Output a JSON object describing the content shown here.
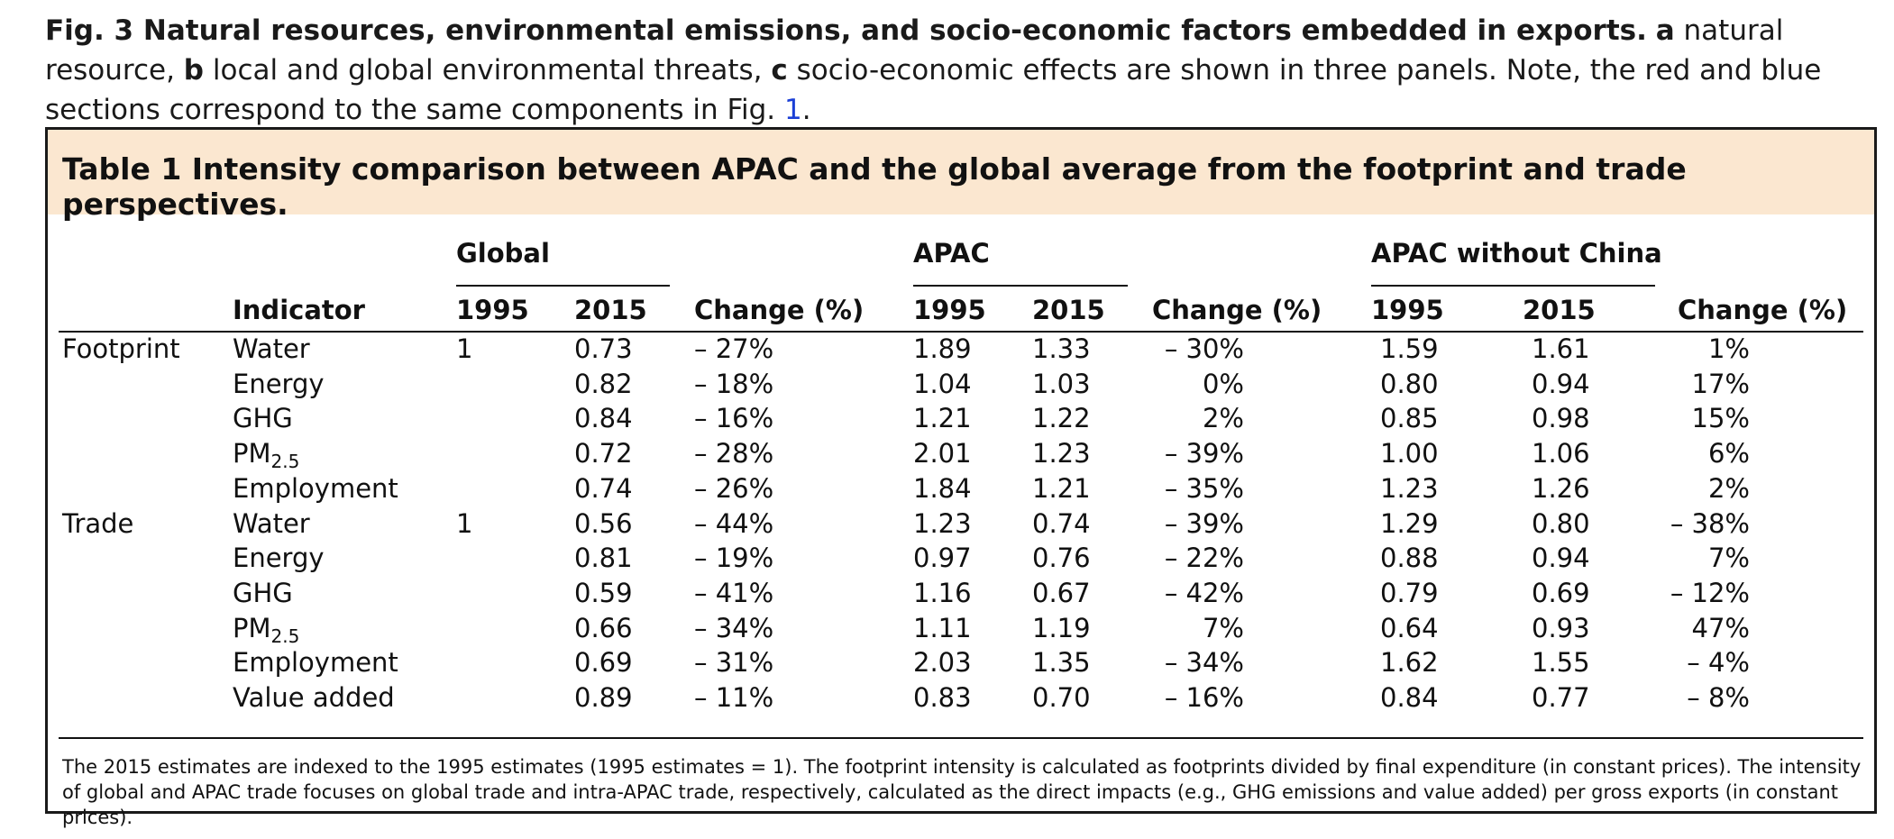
{
  "figure_caption": {
    "label": "Fig. 3 Natural resources, environmental emissions, and socio-economic factors embedded in exports.",
    "a_label": "a",
    "a_text": "natural resource,",
    "b_label": "b",
    "b_text": "local and global environmental threats,",
    "c_label": "c",
    "c_text": "socio-economic effects are shown in three panels. Note, the red and blue sections correspond to the same components in Fig.",
    "fig_ref": "1",
    "end": "."
  },
  "table": {
    "title": "Table 1 Intensity comparison between APAC and the global average from the footprint and trade perspectives.",
    "groups": [
      "Global",
      "APAC",
      "APAC without China"
    ],
    "columns": [
      "Indicator",
      "1995",
      "2015",
      "Change (%)",
      "1995",
      "2015",
      "Change (%)",
      "1995",
      "2015",
      "Change (%)"
    ],
    "rows": [
      {
        "section": "Footprint",
        "indicator": "Water",
        "g95": "1",
        "g15": "0.73",
        "gch": "– 27%",
        "a95": "1.89",
        "a15": "1.33",
        "ach": "– 30%",
        "c95": "1.59",
        "c15": "1.61",
        "cch": "1%"
      },
      {
        "section": "",
        "indicator": "Energy",
        "g95": "",
        "g15": "0.82",
        "gch": "– 18%",
        "a95": "1.04",
        "a15": "1.03",
        "ach": "0%",
        "c95": "0.80",
        "c15": "0.94",
        "cch": "17%"
      },
      {
        "section": "",
        "indicator": "GHG",
        "g95": "",
        "g15": "0.84",
        "gch": "– 16%",
        "a95": "1.21",
        "a15": "1.22",
        "ach": "2%",
        "c95": "0.85",
        "c15": "0.98",
        "cch": "15%"
      },
      {
        "section": "",
        "indicator": "PM",
        "sub": "2.5",
        "g95": "",
        "g15": "0.72",
        "gch": "– 28%",
        "a95": "2.01",
        "a15": "1.23",
        "ach": "– 39%",
        "c95": "1.00",
        "c15": "1.06",
        "cch": "6%"
      },
      {
        "section": "",
        "indicator": "Employment",
        "g95": "",
        "g15": "0.74",
        "gch": "– 26%",
        "a95": "1.84",
        "a15": "1.21",
        "ach": "– 35%",
        "c95": "1.23",
        "c15": "1.26",
        "cch": "2%"
      },
      {
        "section": "Trade",
        "indicator": "Water",
        "g95": "1",
        "g15": "0.56",
        "gch": "– 44%",
        "a95": "1.23",
        "a15": "0.74",
        "ach": "– 39%",
        "c95": "1.29",
        "c15": "0.80",
        "cch": "– 38%"
      },
      {
        "section": "",
        "indicator": "Energy",
        "g95": "",
        "g15": "0.81",
        "gch": "– 19%",
        "a95": "0.97",
        "a15": "0.76",
        "ach": "– 22%",
        "c95": "0.88",
        "c15": "0.94",
        "cch": "7%"
      },
      {
        "section": "",
        "indicator": "GHG",
        "g95": "",
        "g15": "0.59",
        "gch": "– 41%",
        "a95": "1.16",
        "a15": "0.67",
        "ach": "– 42%",
        "c95": "0.79",
        "c15": "0.69",
        "cch": "– 12%"
      },
      {
        "section": "",
        "indicator": "PM",
        "sub": "2.5",
        "g95": "",
        "g15": "0.66",
        "gch": "– 34%",
        "a95": "1.11",
        "a15": "1.19",
        "ach": "7%",
        "c95": "0.64",
        "c15": "0.93",
        "cch": "47%"
      },
      {
        "section": "",
        "indicator": "Employment",
        "g95": "",
        "g15": "0.69",
        "gch": "– 31%",
        "a95": "2.03",
        "a15": "1.35",
        "ach": "– 34%",
        "c95": "1.62",
        "c15": "1.55",
        "cch": "– 4%"
      },
      {
        "section": "",
        "indicator": "Value added",
        "g95": "",
        "g15": "0.89",
        "gch": "– 11%",
        "a95": "0.83",
        "a15": "0.70",
        "ach": "– 16%",
        "c95": "0.84",
        "c15": "0.77",
        "cch": "– 8%"
      }
    ],
    "footnote": "The 2015 estimates are indexed to the 1995 estimates (1995 estimates = 1). The footprint intensity is calculated as footprints divided by final expenditure (in constant prices). The intensity of global and APAC trade focuses on global trade and intra-APAC trade, respectively, calculated as the direct impacts (e.g., GHG emissions and value added) per gross exports (in constant prices)."
  }
}
